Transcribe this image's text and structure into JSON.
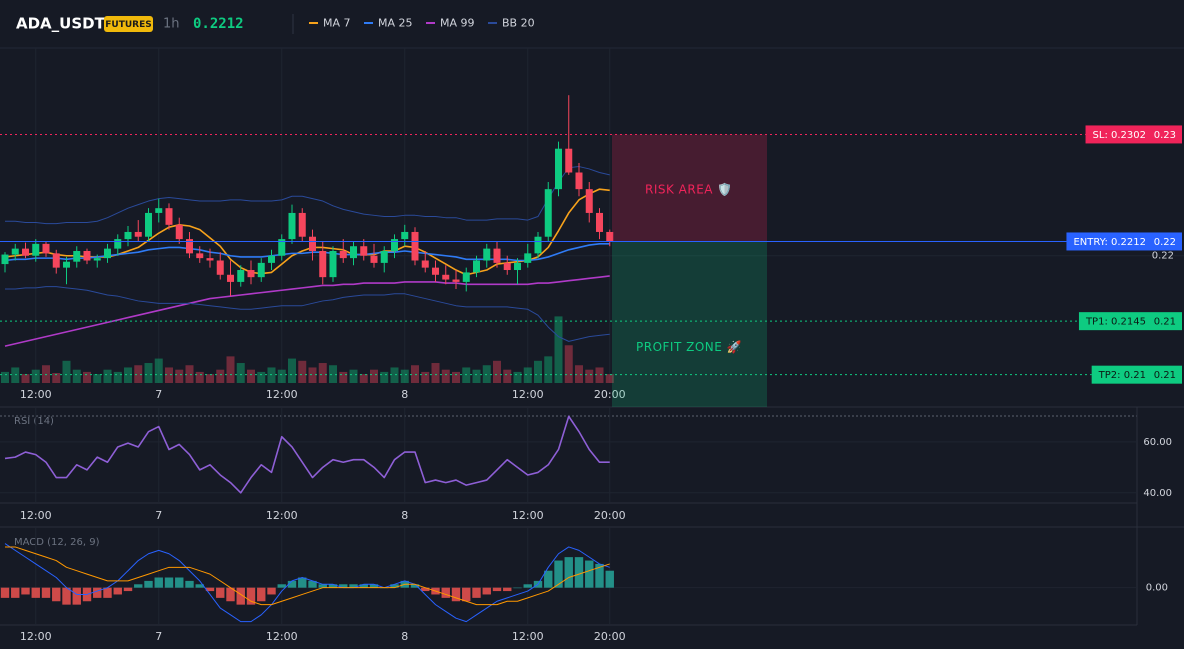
{
  "chart_data": [
    {
      "type": "candlestick",
      "title": "ADA_USDT",
      "badge": "FUTURES",
      "interval": "1h",
      "last_price": 0.2212,
      "categories": [
        null,
        null,
        null,
        "12:00",
        null,
        null,
        null,
        null,
        null,
        null,
        null,
        null,
        null,
        null,
        null,
        "7",
        null,
        null,
        null,
        null,
        null,
        null,
        null,
        null,
        null,
        null,
        null,
        "12:00",
        null,
        null,
        null,
        null,
        null,
        null,
        null,
        null,
        null,
        null,
        null,
        "8",
        null,
        null,
        null,
        null,
        null,
        null,
        null,
        null,
        null,
        null,
        null,
        "12:00",
        null,
        null,
        null,
        null,
        null,
        null,
        null,
        "20:00"
      ],
      "open": [
        0.2193,
        0.2201,
        0.2206,
        0.22,
        0.221,
        0.2202,
        0.219,
        0.2195,
        0.2204,
        0.2196,
        0.2198,
        0.2206,
        0.2214,
        0.222,
        0.2216,
        0.2236,
        0.224,
        0.2226,
        0.2214,
        0.2202,
        0.2198,
        0.2196,
        0.2184,
        0.2178,
        0.2188,
        0.2182,
        0.2194,
        0.22,
        0.2214,
        0.2236,
        0.2216,
        0.2204,
        0.2182,
        0.2204,
        0.2198,
        0.2208,
        0.22,
        0.2194,
        0.2204,
        0.2214,
        0.222,
        0.2196,
        0.219,
        0.2184,
        0.218,
        0.2178,
        0.2186,
        0.2196,
        0.2206,
        0.2194,
        0.2188,
        0.2194,
        0.2202,
        0.2216,
        0.2256,
        0.229,
        0.227,
        0.2256,
        0.2236,
        0.222
      ],
      "high": [
        0.2203,
        0.221,
        0.2211,
        0.2214,
        0.2212,
        0.2205,
        0.2199,
        0.2208,
        0.2206,
        0.2201,
        0.221,
        0.2218,
        0.2225,
        0.223,
        0.224,
        0.2248,
        0.2244,
        0.2232,
        0.222,
        0.2208,
        0.2206,
        0.2203,
        0.2196,
        0.2192,
        0.2196,
        0.2198,
        0.2205,
        0.2218,
        0.2243,
        0.224,
        0.2222,
        0.2212,
        0.2208,
        0.2214,
        0.2212,
        0.2214,
        0.221,
        0.2208,
        0.2218,
        0.2226,
        0.2224,
        0.2204,
        0.2196,
        0.2192,
        0.2188,
        0.219,
        0.22,
        0.221,
        0.2212,
        0.22,
        0.2198,
        0.221,
        0.222,
        0.2262,
        0.2296,
        0.2335,
        0.2278,
        0.2262,
        0.224,
        0.2222
      ],
      "low": [
        0.2186,
        0.2196,
        0.2198,
        0.2195,
        0.2199,
        0.2185,
        0.2176,
        0.219,
        0.2193,
        0.219,
        0.2194,
        0.22,
        0.2208,
        0.2212,
        0.2212,
        0.2228,
        0.2222,
        0.221,
        0.2198,
        0.2194,
        0.219,
        0.218,
        0.2166,
        0.2174,
        0.2176,
        0.2178,
        0.2188,
        0.2196,
        0.221,
        0.2212,
        0.2196,
        0.2176,
        0.2178,
        0.2194,
        0.2192,
        0.2196,
        0.219,
        0.2186,
        0.2198,
        0.2208,
        0.2192,
        0.2186,
        0.2178,
        0.2176,
        0.2172,
        0.217,
        0.2182,
        0.219,
        0.219,
        0.2184,
        0.2176,
        0.219,
        0.2198,
        0.2212,
        0.225,
        0.2268,
        0.225,
        0.2228,
        0.2214,
        0.2208
      ],
      "close": [
        0.2201,
        0.2206,
        0.22,
        0.221,
        0.2202,
        0.219,
        0.2195,
        0.2204,
        0.2196,
        0.2198,
        0.2206,
        0.2214,
        0.222,
        0.2216,
        0.2236,
        0.224,
        0.2226,
        0.2214,
        0.2202,
        0.2198,
        0.2196,
        0.2184,
        0.2178,
        0.2188,
        0.2182,
        0.2194,
        0.22,
        0.2214,
        0.2236,
        0.2216,
        0.2204,
        0.2182,
        0.2204,
        0.2198,
        0.2208,
        0.22,
        0.2194,
        0.2204,
        0.2214,
        0.222,
        0.2196,
        0.219,
        0.2184,
        0.218,
        0.2178,
        0.2186,
        0.2196,
        0.2206,
        0.2194,
        0.2188,
        0.2194,
        0.2202,
        0.2216,
        0.2256,
        0.229,
        0.227,
        0.2256,
        0.2236,
        0.222,
        0.2212
      ],
      "volume": [
        10,
        14,
        8,
        12,
        16,
        9,
        20,
        12,
        10,
        8,
        12,
        10,
        14,
        16,
        18,
        22,
        14,
        12,
        16,
        10,
        8,
        12,
        24,
        18,
        12,
        10,
        14,
        12,
        22,
        20,
        14,
        18,
        16,
        10,
        12,
        8,
        12,
        10,
        14,
        12,
        16,
        10,
        18,
        12,
        10,
        14,
        12,
        16,
        20,
        12,
        10,
        14,
        20,
        24,
        60,
        34,
        16,
        12,
        14,
        8
      ],
      "volume_lim": [
        0,
        300
      ],
      "up_color": "#0ecb81",
      "down_color": "#f6465d",
      "ylim": [
        0.2093,
        0.2373
      ],
      "yticks": [
        {
          "value": 0.22,
          "label": "0.22"
        }
      ],
      "series": [
        {
          "name": "MA 7",
          "color": "#f7a21b",
          "values": [
            0.2199,
            0.22,
            0.2201,
            0.2202,
            0.2203,
            0.2201,
            0.22,
            0.22,
            0.2199,
            0.2199,
            0.2199,
            0.2201,
            0.2204,
            0.2207,
            0.2213,
            0.2219,
            0.2224,
            0.2226,
            0.2225,
            0.2222,
            0.2215,
            0.2208,
            0.2197,
            0.219,
            0.2186,
            0.2185,
            0.2186,
            0.2193,
            0.22,
            0.2204,
            0.2207,
            0.2207,
            0.2206,
            0.2205,
            0.2201,
            0.2201,
            0.2201,
            0.2204,
            0.2204,
            0.2208,
            0.2207,
            0.2203,
            0.2198,
            0.2193,
            0.2188,
            0.2184,
            0.2186,
            0.2188,
            0.2193,
            0.2194,
            0.2195,
            0.2196,
            0.2199,
            0.2207,
            0.2221,
            0.2236,
            0.2247,
            0.2252,
            0.2256,
            0.2255
          ]
        },
        {
          "name": "MA 25",
          "color": "#2f7bf5",
          "values": [
            0.2196,
            0.2197,
            0.2197,
            0.2198,
            0.2198,
            0.2198,
            0.2197,
            0.2198,
            0.2198,
            0.2199,
            0.22,
            0.2201,
            0.2202,
            0.2203,
            0.2205,
            0.2206,
            0.2207,
            0.2207,
            0.2206,
            0.2205,
            0.2203,
            0.2202,
            0.22,
            0.2199,
            0.2199,
            0.2199,
            0.22,
            0.2201,
            0.2202,
            0.2202,
            0.2203,
            0.2203,
            0.2202,
            0.2201,
            0.2201,
            0.2201,
            0.2202,
            0.2203,
            0.2203,
            0.2204,
            0.2203,
            0.2202,
            0.2201,
            0.22,
            0.2199,
            0.2197,
            0.2197,
            0.2197,
            0.2197,
            0.2197,
            0.2196,
            0.2196,
            0.2197,
            0.2199,
            0.2202,
            0.2205,
            0.2207,
            0.2209,
            0.221,
            0.221
          ]
        },
        {
          "name": "MA 99",
          "color": "#b03ac8",
          "values": [
            0.2124,
            0.2126,
            0.2128,
            0.213,
            0.2132,
            0.2134,
            0.2136,
            0.2138,
            0.214,
            0.2142,
            0.2144,
            0.2146,
            0.2148,
            0.215,
            0.2152,
            0.2154,
            0.2156,
            0.2158,
            0.216,
            0.2162,
            0.2164,
            0.2165,
            0.2166,
            0.2167,
            0.2168,
            0.2169,
            0.217,
            0.2171,
            0.2172,
            0.2173,
            0.2174,
            0.2175,
            0.2175,
            0.2176,
            0.2176,
            0.2177,
            0.2177,
            0.2177,
            0.2177,
            0.2178,
            0.2178,
            0.2178,
            0.2178,
            0.2177,
            0.2177,
            0.2176,
            0.2176,
            0.2176,
            0.2176,
            0.2176,
            0.2176,
            0.2176,
            0.2177,
            0.2177,
            0.2178,
            0.2179,
            0.218,
            0.2181,
            0.2182,
            0.2183
          ]
        },
        {
          "name": "BB 20",
          "color": "#2a4a9a",
          "upper": [
            0.2229,
            0.2229,
            0.2228,
            0.2228,
            0.2227,
            0.2227,
            0.2228,
            0.2228,
            0.2228,
            0.2229,
            0.2232,
            0.2236,
            0.224,
            0.2243,
            0.2246,
            0.2248,
            0.2249,
            0.2248,
            0.2247,
            0.2246,
            0.2246,
            0.2246,
            0.2247,
            0.2247,
            0.2246,
            0.2246,
            0.2246,
            0.2247,
            0.225,
            0.225,
            0.2248,
            0.2246,
            0.2242,
            0.2239,
            0.2237,
            0.2235,
            0.2234,
            0.2233,
            0.2233,
            0.2234,
            0.2234,
            0.2233,
            0.2233,
            0.2232,
            0.2232,
            0.223,
            0.223,
            0.223,
            0.2231,
            0.2231,
            0.2231,
            0.223,
            0.2233,
            0.2248,
            0.2262,
            0.2274,
            0.2275,
            0.2273,
            0.227,
            0.2268
          ],
          "lower": [
            0.2172,
            0.2172,
            0.2173,
            0.2173,
            0.2174,
            0.2174,
            0.2173,
            0.2172,
            0.2171,
            0.2169,
            0.2167,
            0.2166,
            0.2164,
            0.2162,
            0.2161,
            0.216,
            0.216,
            0.216,
            0.216,
            0.2159,
            0.2158,
            0.2157,
            0.2156,
            0.2155,
            0.2155,
            0.2156,
            0.2157,
            0.2158,
            0.2158,
            0.2158,
            0.216,
            0.2162,
            0.2163,
            0.2165,
            0.2166,
            0.2167,
            0.2167,
            0.2167,
            0.2168,
            0.2168,
            0.2166,
            0.2164,
            0.2162,
            0.216,
            0.2158,
            0.2157,
            0.2157,
            0.2157,
            0.2157,
            0.2157,
            0.2156,
            0.2155,
            0.215,
            0.214,
            0.2132,
            0.2128,
            0.213,
            0.2132,
            0.2133,
            0.2134
          ]
        }
      ],
      "levels": [
        {
          "label": "SL: 0.2302",
          "value": 0.2302,
          "axis_label": "0.23",
          "color": "#f0245a",
          "line_style": "dotted"
        },
        {
          "label": "ENTRY: 0.2212",
          "value": 0.2212,
          "axis_label": "0.22",
          "color": "#2962ff",
          "line_style": "solid"
        },
        {
          "label": "TP1: 0.2145",
          "value": 0.2145,
          "axis_label": "0.21",
          "color": "#0ecb81",
          "line_style": "dotted"
        },
        {
          "label": "TP2: 0.21",
          "value": 0.21,
          "axis_label": "0.21",
          "color": "#0ecb81",
          "line_style": "dotted"
        }
      ],
      "zones": [
        {
          "label": "RISK AREA 🛡️",
          "color": "#f0245a"
        },
        {
          "label": "PROFIT ZONE 🚀",
          "color": "#0ecb81"
        }
      ]
    },
    {
      "type": "line",
      "title": "RSI (14)",
      "color": "#8e5fd6",
      "categories": [
        null,
        null,
        null,
        "12:00",
        null,
        null,
        null,
        null,
        null,
        null,
        null,
        null,
        null,
        null,
        null,
        "7",
        null,
        null,
        null,
        null,
        null,
        null,
        null,
        null,
        null,
        null,
        null,
        "12:00",
        null,
        null,
        null,
        null,
        null,
        null,
        null,
        null,
        null,
        null,
        null,
        "8",
        null,
        null,
        null,
        null,
        null,
        null,
        null,
        null,
        null,
        null,
        null,
        "12:00",
        null,
        null,
        null,
        null,
        null,
        null,
        null,
        "20:00"
      ],
      "values": [
        53.5,
        54,
        56,
        55,
        52,
        46,
        46,
        51,
        49,
        54,
        52,
        58,
        59.5,
        58,
        64,
        66,
        57,
        59,
        55,
        49,
        51,
        47,
        44,
        40,
        46,
        51,
        48,
        62,
        58,
        52,
        46,
        50,
        53,
        52,
        53,
        53,
        50,
        46,
        53,
        56,
        56,
        44,
        45,
        44,
        45,
        43,
        44,
        45,
        49,
        53,
        50,
        47,
        48,
        51,
        57,
        70,
        64,
        57,
        52,
        52
      ],
      "ylim": [
        36,
        72.5
      ],
      "yticks": [
        {
          "value": 40,
          "label": "40.00"
        },
        {
          "value": 60,
          "label": "60.00"
        }
      ]
    },
    {
      "type": "macd",
      "title": "MACD (12, 26, 9)",
      "categories": [
        null,
        null,
        null,
        "12:00",
        null,
        null,
        null,
        null,
        null,
        null,
        null,
        null,
        null,
        null,
        null,
        "7",
        null,
        null,
        null,
        null,
        null,
        null,
        null,
        null,
        null,
        null,
        null,
        "12:00",
        null,
        null,
        null,
        null,
        null,
        null,
        null,
        null,
        null,
        null,
        null,
        "8",
        null,
        null,
        null,
        null,
        null,
        null,
        null,
        null,
        null,
        null,
        null,
        "12:00",
        null,
        null,
        null,
        null,
        null,
        null,
        null,
        "20:00"
      ],
      "histogram": [
        -0.0003,
        -0.0003,
        -0.0002,
        -0.0003,
        -0.0003,
        -0.0004,
        -0.0005,
        -0.0005,
        -0.0004,
        -0.0003,
        -0.0003,
        -0.0002,
        -0.0001,
        0.0001,
        0.0002,
        0.0003,
        0.0003,
        0.0003,
        0.0002,
        0.0001,
        -0.0001,
        -0.0003,
        -0.0004,
        -0.0005,
        -0.0005,
        -0.0004,
        -0.0002,
        0.0001,
        0.0002,
        0.0003,
        0.0002,
        0.0001,
        0.0001,
        0.0001,
        0.0001,
        0.0001,
        0.0001,
        0,
        0.0001,
        0.0002,
        0.0001,
        -0.0001,
        -0.0002,
        -0.0003,
        -0.0004,
        -0.0004,
        -0.0003,
        -0.0002,
        -0.0001,
        -0.0001,
        0,
        0.0001,
        0.0002,
        0.0005,
        0.0008,
        0.0009,
        0.0009,
        0.0008,
        0.0007,
        0.0005
      ],
      "positive_color": "#26a69a",
      "negative_color": "#ef5350",
      "series": [
        {
          "color": "#2962ff",
          "values": [
            0.0013,
            0.0011,
            0.0009,
            0.0007,
            0.0005,
            0.0003,
            0,
            -0.0002,
            -0.0002,
            -0.0001,
            0,
            0.0002,
            0.0005,
            0.0008,
            0.001,
            0.0011,
            0.001,
            0.0008,
            0.0005,
            0.0002,
            -0.0002,
            -0.0006,
            -0.0008,
            -0.001,
            -0.001,
            -0.0008,
            -0.0005,
            -0.0001,
            0.0002,
            0.0003,
            0.0002,
            0.0001,
            0.0001,
            0,
            0,
            0.0001,
            0.0001,
            0,
            0.0001,
            0.0002,
            0.0001,
            -0.0002,
            -0.0005,
            -0.0007,
            -0.0009,
            -0.001,
            -0.0008,
            -0.0006,
            -0.0004,
            -0.0003,
            -0.0002,
            -0.0001,
            0.0001,
            0.0006,
            0.001,
            0.0012,
            0.0011,
            0.0009,
            0.0007,
            0.0006
          ]
        },
        {
          "color": "#ff9800",
          "values": [
            0.0012,
            0.0012,
            0.0011,
            0.001,
            0.0009,
            0.0008,
            0.0006,
            0.0005,
            0.0004,
            0.0003,
            0.0002,
            0.0002,
            0.0002,
            0.0003,
            0.0004,
            0.0005,
            0.0006,
            0.0006,
            0.0006,
            0.0005,
            0.0004,
            0.0002,
            0,
            -0.0002,
            -0.0004,
            -0.0005,
            -0.0005,
            -0.0004,
            -0.0003,
            -0.0002,
            -0.0001,
            0,
            0,
            0,
            0,
            0,
            0,
            0,
            0,
            0.0001,
            0.0001,
            0,
            -0.0001,
            -0.0002,
            -0.0003,
            -0.0004,
            -0.0005,
            -0.0005,
            -0.0005,
            -0.0004,
            -0.0004,
            -0.0003,
            -0.0002,
            -0.0001,
            0.0001,
            0.0003,
            0.0004,
            0.0005,
            0.0006,
            0.0007
          ]
        }
      ],
      "ylim": [
        -0.0011,
        0.0017
      ],
      "yticks": [
        {
          "value": 0,
          "label": "0.00"
        }
      ]
    }
  ]
}
